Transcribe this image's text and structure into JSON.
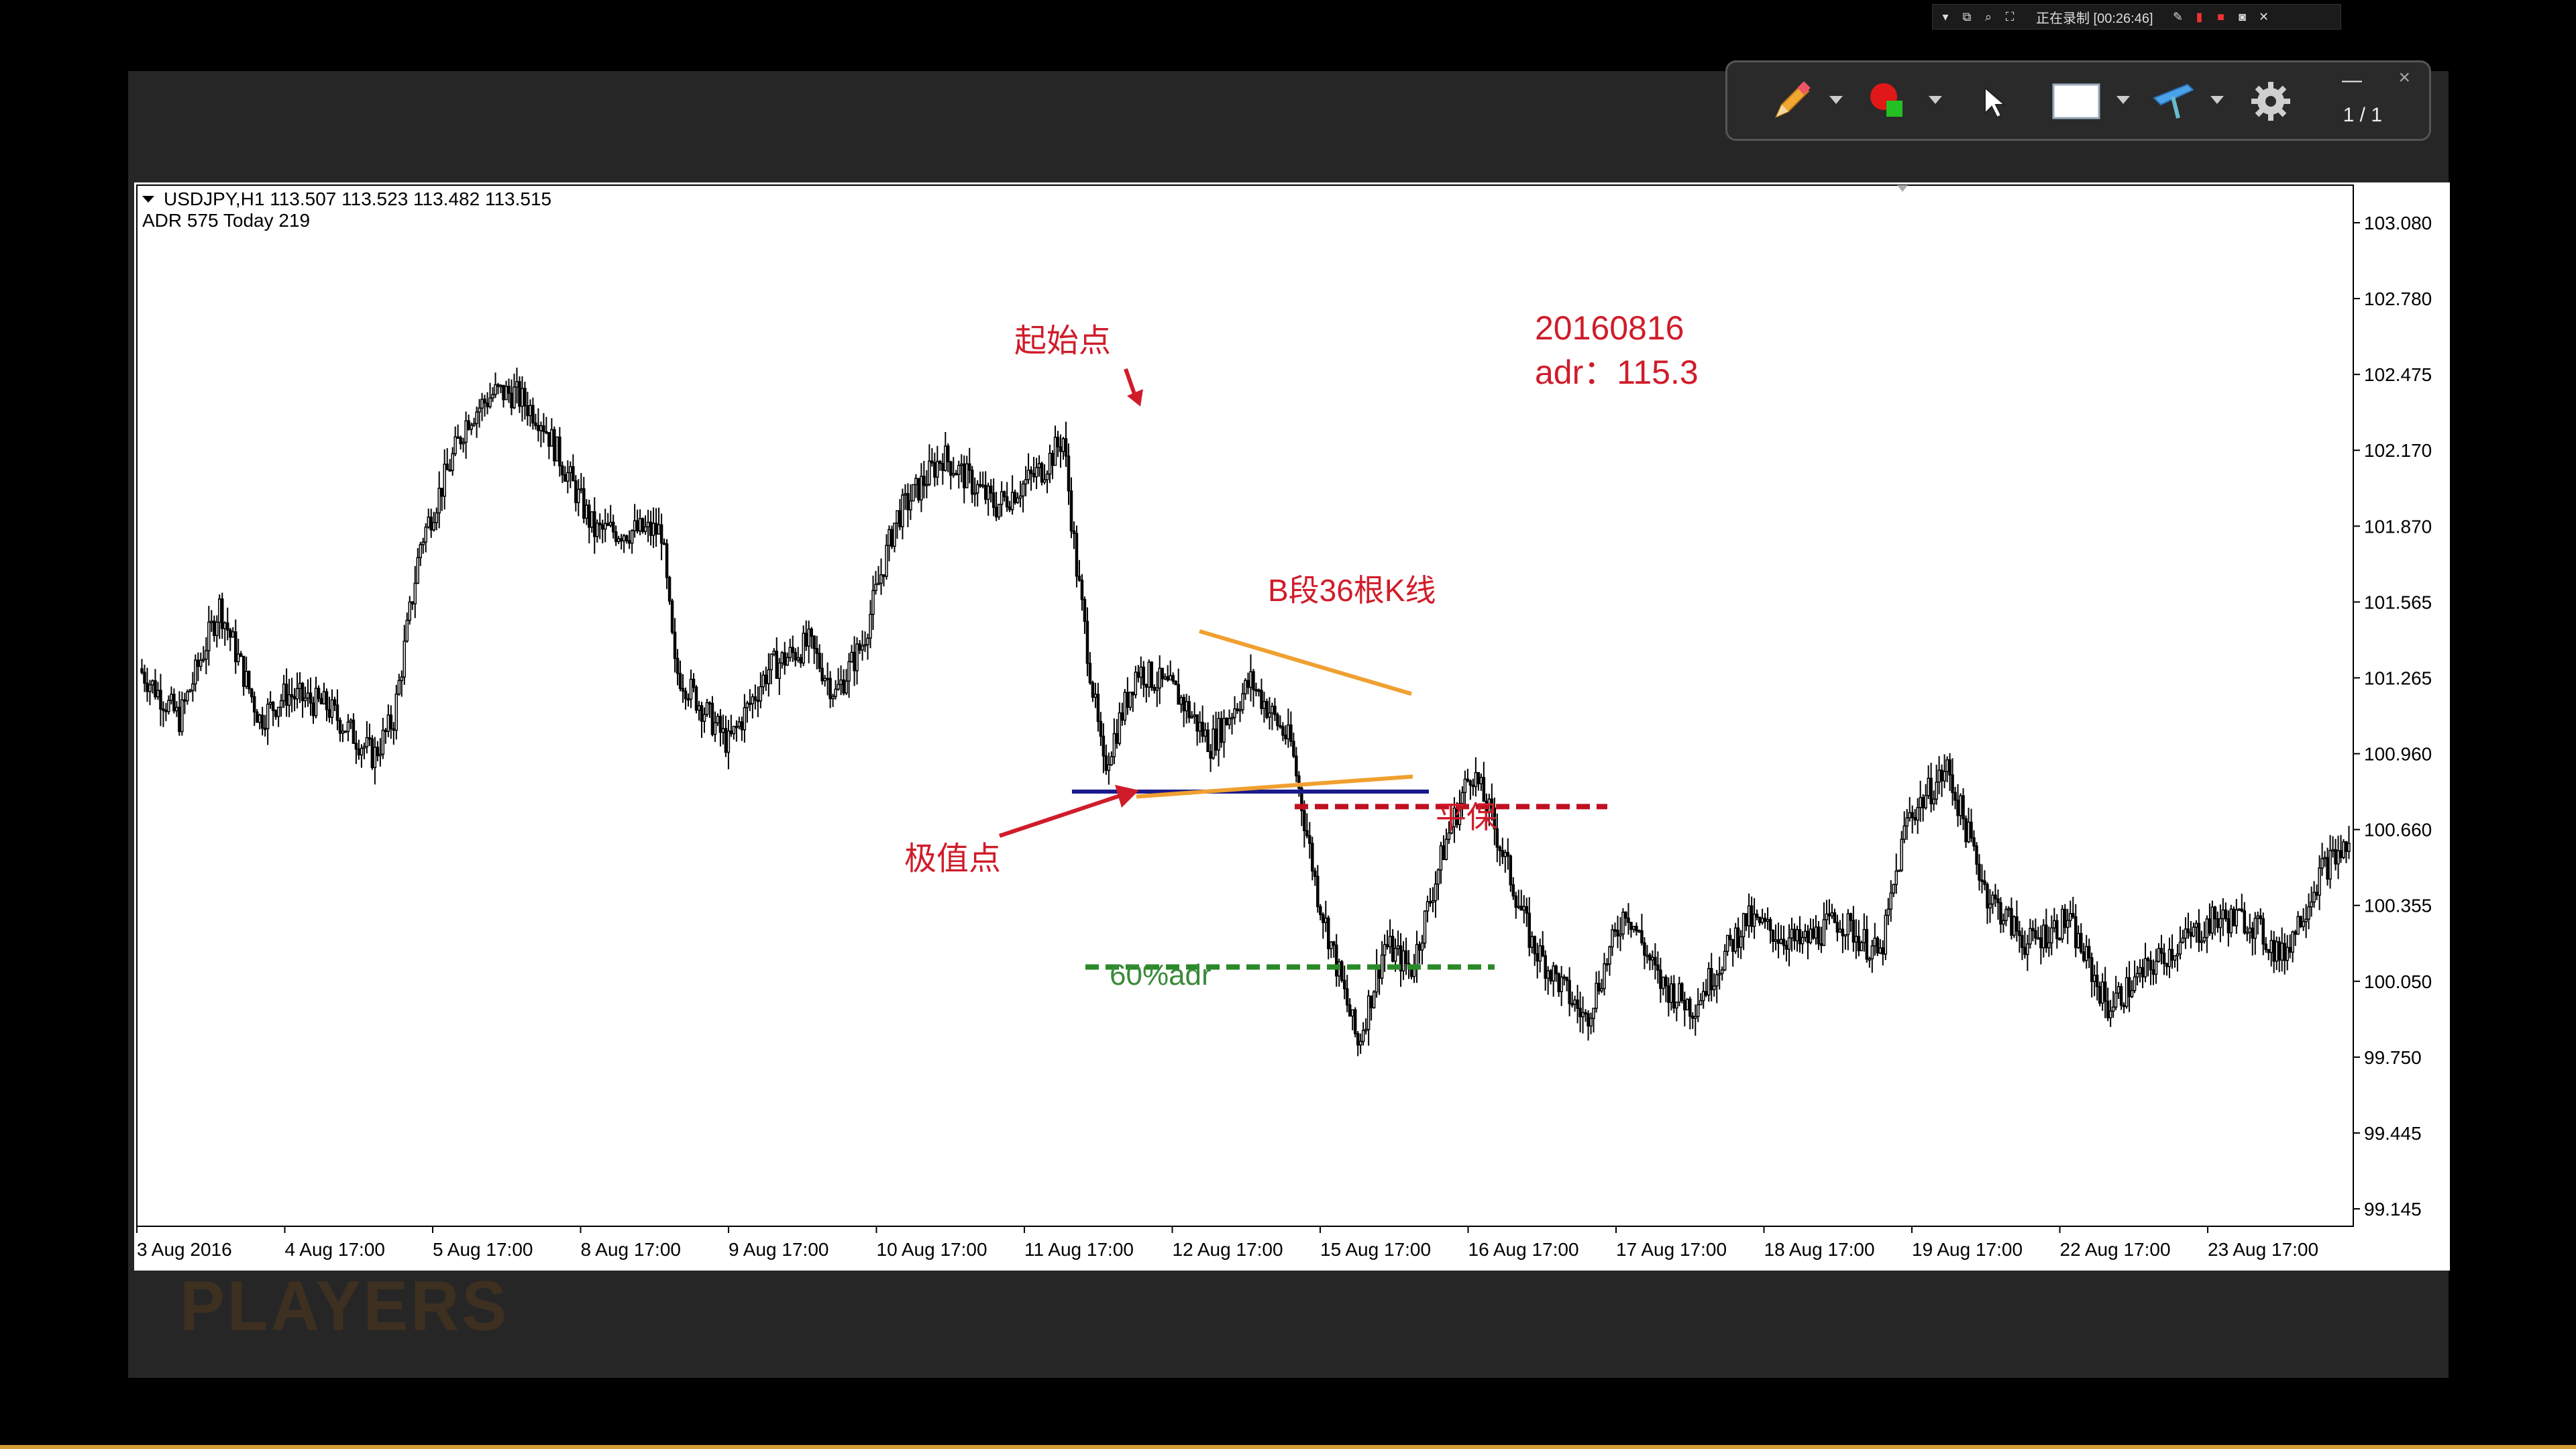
{
  "recorder": {
    "status_text": "正在录制 [00:26:46]"
  },
  "toolbar": {
    "page_indicator": "1 / 1",
    "minimize_label": "—",
    "close_label": "×",
    "tools": [
      "pencil-icon",
      "color-picker-icon",
      "cursor-icon",
      "rectangle-icon",
      "highlighter-icon",
      "gear-icon"
    ]
  },
  "chart_header": {
    "symbol_line": "USDJPY,H1  113.507 113.523 113.482 113.515",
    "adr_line": "ADR 575   Today 219"
  },
  "watermark": "PLAYERS",
  "chart_data": {
    "type": "candlestick",
    "symbol": "USDJPY",
    "timeframe": "H1",
    "ohlc_header": [
      113.507,
      113.523,
      113.482,
      113.515
    ],
    "y_ticks": [
      "103.080",
      "102.780",
      "102.475",
      "102.170",
      "101.870",
      "101.565",
      "101.265",
      "100.960",
      "100.660",
      "100.355",
      "100.050",
      "99.750",
      "99.445",
      "99.145"
    ],
    "x_ticks": [
      "3 Aug 2016",
      "4 Aug 17:00",
      "5 Aug 17:00",
      "8 Aug 17:00",
      "9 Aug 17:00",
      "10 Aug 17:00",
      "11 Aug 17:00",
      "12 Aug 17:00",
      "15 Aug 17:00",
      "16 Aug 17:00",
      "17 Aug 17:00",
      "18 Aug 17:00",
      "19 Aug 17:00",
      "22 Aug 17:00",
      "23 Aug 17:00"
    ],
    "ylim": [
      99.0,
      103.2
    ],
    "price_path": [
      [
        0,
        101.3
      ],
      [
        30,
        101.1
      ],
      [
        60,
        101.55
      ],
      [
        90,
        101.1
      ],
      [
        110,
        101.2
      ],
      [
        140,
        101.15
      ],
      [
        175,
        100.95
      ],
      [
        190,
        101.1
      ],
      [
        210,
        101.8
      ],
      [
        245,
        102.3
      ],
      [
        265,
        102.4
      ],
      [
        280,
        102.4
      ],
      [
        300,
        102.3
      ],
      [
        340,
        101.85
      ],
      [
        390,
        101.85
      ],
      [
        400,
        101.3
      ],
      [
        440,
        101.0
      ],
      [
        470,
        101.3
      ],
      [
        500,
        101.4
      ],
      [
        520,
        101.2
      ],
      [
        540,
        101.4
      ],
      [
        565,
        101.9
      ],
      [
        600,
        102.15
      ],
      [
        640,
        101.95
      ],
      [
        675,
        102.1
      ],
      [
        690,
        102.22
      ],
      [
        700,
        101.7
      ],
      [
        720,
        100.9
      ],
      [
        745,
        101.3
      ],
      [
        775,
        101.2
      ],
      [
        800,
        101.0
      ],
      [
        830,
        101.25
      ],
      [
        860,
        101.0
      ],
      [
        880,
        100.4
      ],
      [
        910,
        99.8
      ],
      [
        930,
        100.2
      ],
      [
        950,
        100.1
      ],
      [
        975,
        100.6
      ],
      [
        995,
        100.9
      ],
      [
        1010,
        100.7
      ],
      [
        1040,
        100.2
      ],
      [
        1080,
        99.9
      ],
      [
        1110,
        100.35
      ],
      [
        1135,
        100.05
      ],
      [
        1160,
        99.95
      ],
      [
        1200,
        100.3
      ],
      [
        1240,
        100.2
      ],
      [
        1270,
        100.3
      ],
      [
        1300,
        100.15
      ],
      [
        1320,
        100.7
      ],
      [
        1350,
        100.9
      ],
      [
        1380,
        100.4
      ],
      [
        1410,
        100.2
      ],
      [
        1440,
        100.3
      ],
      [
        1470,
        99.95
      ],
      [
        1510,
        100.15
      ],
      [
        1550,
        100.3
      ],
      [
        1575,
        100.3
      ],
      [
        1600,
        100.15
      ],
      [
        1630,
        100.5
      ],
      [
        1650,
        100.6
      ]
    ],
    "annotations": {
      "date_label": "20160816",
      "adr_label": "adr：115.3",
      "start_point_label": "起始点",
      "extreme_point_label": "极值点",
      "segment_label": "B段36根K线",
      "breakeven_label": "平保",
      "target_label": "60%adr"
    },
    "levels": {
      "extreme_line": 100.81,
      "breakeven_line": 100.75,
      "target_60pct_adr": 100.11
    },
    "trendlines": [
      {
        "color": "#f0a030",
        "from": [
          "12 Aug",
          101.45
        ],
        "to": [
          "15 Aug",
          101.2
        ]
      },
      {
        "color": "#f0a030",
        "from": [
          "12 Aug",
          100.79
        ],
        "to": [
          "15 Aug",
          100.87
        ]
      }
    ],
    "colors": {
      "candles": "#000000",
      "text_red": "#d01c2a",
      "extreme_line": "#1a1a8c",
      "breakeven_line": "#c01020",
      "target_line": "#2a8a2a",
      "trendline": "#f0a030",
      "annotation_green": "#3a8a3a"
    }
  }
}
